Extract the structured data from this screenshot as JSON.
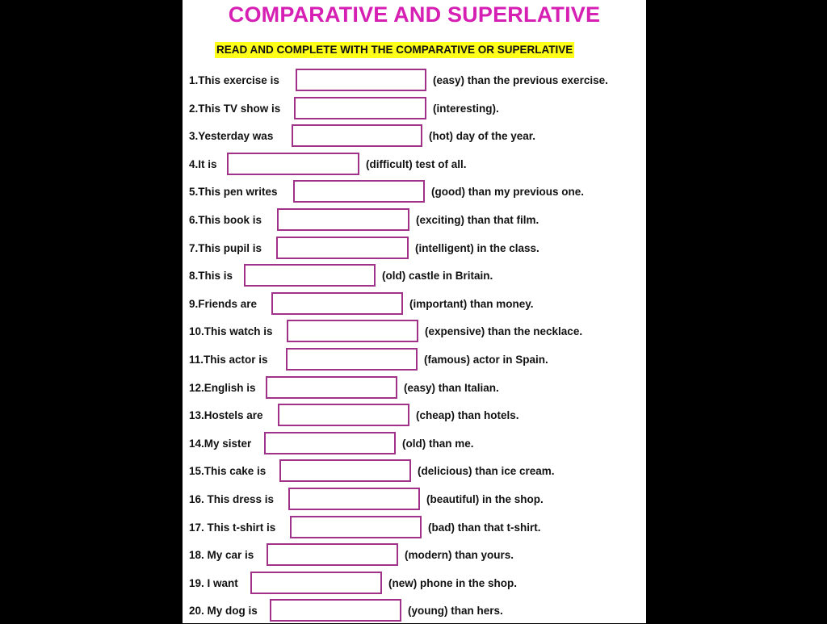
{
  "worksheet": {
    "title": "COMPARATIVE AND SUPERLATIVE",
    "instruction": "READ AND COMPLETE WITH THE COMPARATIVE OR SUPERLATIVE",
    "items": [
      {
        "stem": "1.This exercise is",
        "clue": "(easy) than the previous exercise.",
        "answer": ""
      },
      {
        "stem": "2.This TV show is",
        "clue": "(interesting).",
        "answer": ""
      },
      {
        "stem": "3.Yesterday was",
        "clue": "(hot) day of the year.",
        "answer": ""
      },
      {
        "stem": "4.It is",
        "clue": "(difficult) test of all.",
        "answer": ""
      },
      {
        "stem": "5.This pen writes",
        "clue": "(good) than my previous one.",
        "answer": ""
      },
      {
        "stem": "6.This book is",
        "clue": "(exciting) than that film.",
        "answer": ""
      },
      {
        "stem": "7.This pupil is",
        "clue": "(intelligent) in the class.",
        "answer": ""
      },
      {
        "stem": "8.This is",
        "clue": "(old) castle in Britain.",
        "answer": ""
      },
      {
        "stem": "9.Friends are",
        "clue": "(important) than money.",
        "answer": ""
      },
      {
        "stem": "10.This watch is",
        "clue": "(expensive) than the necklace.",
        "answer": ""
      },
      {
        "stem": "11.This actor is",
        "clue": "(famous) actor in Spain.",
        "answer": ""
      },
      {
        "stem": "12.English is",
        "clue": "(easy) than Italian.",
        "answer": ""
      },
      {
        "stem": "13.Hostels are",
        "clue": "(cheap) than hotels.",
        "answer": ""
      },
      {
        "stem": "14.My sister",
        "clue": "(old) than me.",
        "answer": ""
      },
      {
        "stem": "15.This cake is",
        "clue": "(delicious) than ice cream.",
        "answer": ""
      },
      {
        "stem": "16. This dress is",
        "clue": "(beautiful) in the shop.",
        "answer": ""
      },
      {
        "stem": "17. This t-shirt is",
        "clue": "(bad) than that t-shirt.",
        "answer": ""
      },
      {
        "stem": "18. My car is",
        "clue": "(modern) than yours.",
        "answer": ""
      },
      {
        "stem": "19. I want",
        "clue": "(new) phone in the shop.",
        "answer": ""
      },
      {
        "stem": "20. My dog is",
        "clue": "(young) than hers.",
        "answer": ""
      }
    ]
  },
  "colors": {
    "title": "#d61fb3",
    "instruction_highlight": "#ffff1a",
    "answer_box_border": "#a0328a",
    "page_background": "#000000"
  }
}
